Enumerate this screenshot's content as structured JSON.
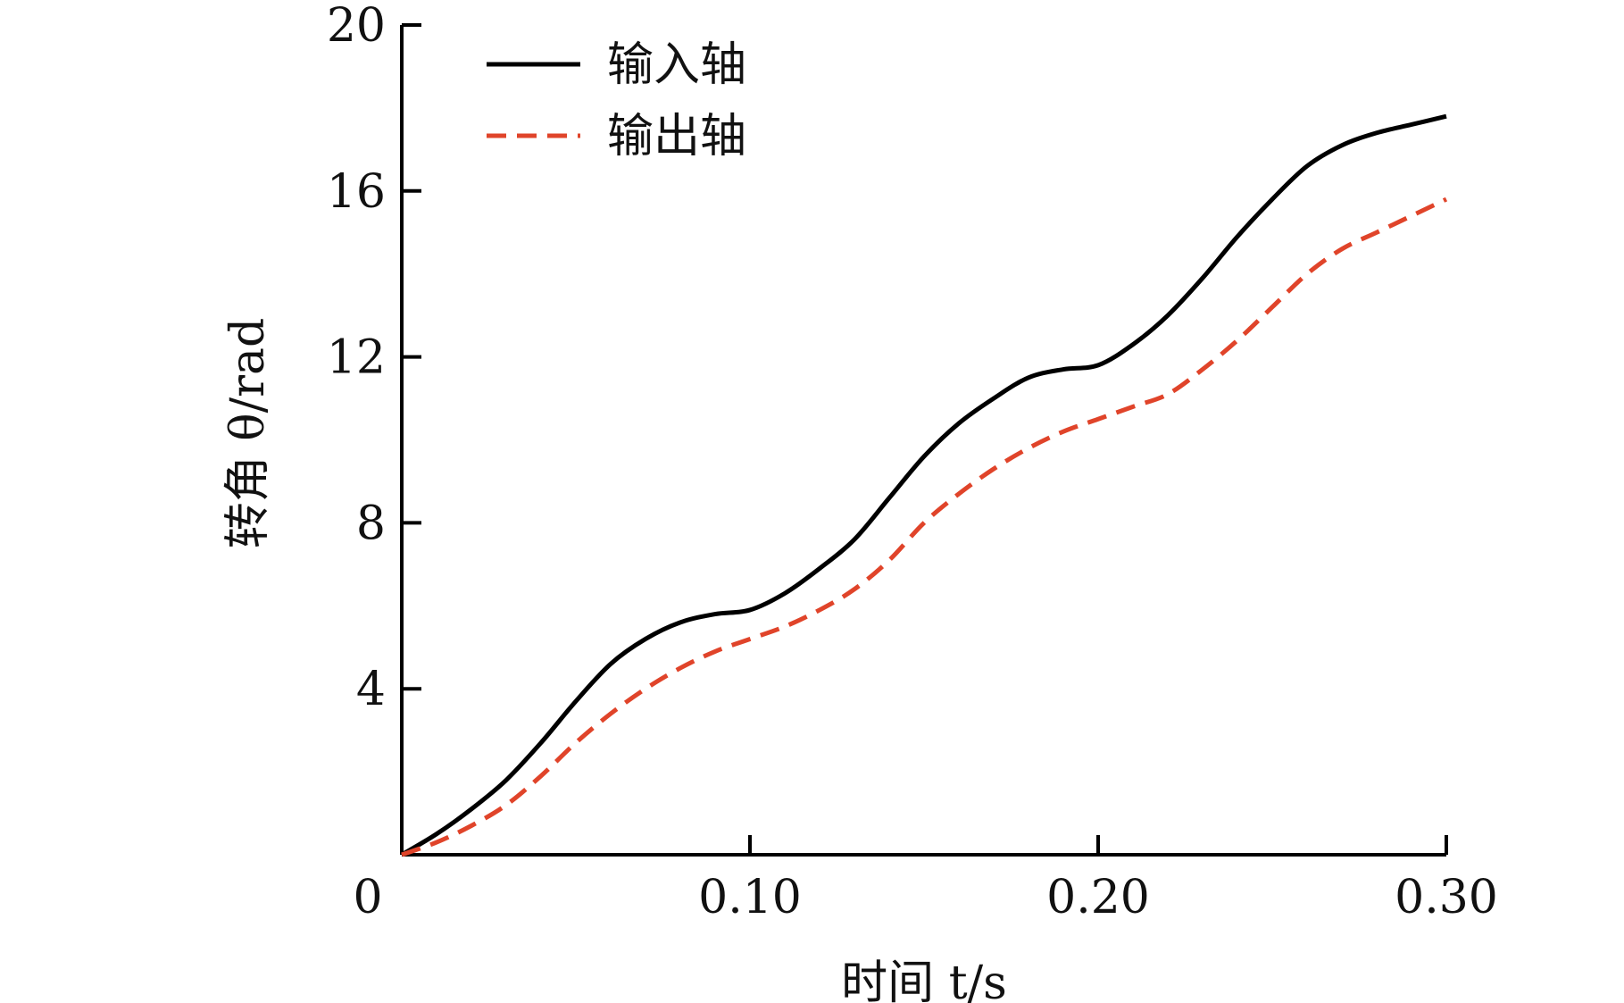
{
  "chart_data": {
    "type": "line",
    "title": "",
    "xlabel": "时间 t/s",
    "ylabel": "转角 θ/rad",
    "xlim": [
      0,
      0.3
    ],
    "ylim": [
      0,
      20
    ],
    "x_ticks": [
      "0.10",
      "0.20",
      "0.30"
    ],
    "y_ticks": [
      "4",
      "8",
      "12",
      "16",
      "20"
    ],
    "origin_label": "0",
    "grid": false,
    "legend_position": "top-left",
    "series": [
      {
        "name": "输入轴",
        "color": "#000000",
        "style": "solid",
        "x": [
          0,
          0.01,
          0.02,
          0.03,
          0.04,
          0.05,
          0.06,
          0.07,
          0.08,
          0.09,
          0.1,
          0.11,
          0.12,
          0.13,
          0.14,
          0.15,
          0.16,
          0.17,
          0.18,
          0.19,
          0.2,
          0.21,
          0.22,
          0.23,
          0.24,
          0.25,
          0.26,
          0.27,
          0.28,
          0.29,
          0.3
        ],
        "values": [
          0,
          0.5,
          1.1,
          1.8,
          2.7,
          3.7,
          4.6,
          5.2,
          5.6,
          5.8,
          5.9,
          6.3,
          6.9,
          7.6,
          8.6,
          9.6,
          10.4,
          11.0,
          11.5,
          11.7,
          11.8,
          12.3,
          13.0,
          13.9,
          14.9,
          15.8,
          16.6,
          17.1,
          17.4,
          17.6,
          17.8
        ]
      },
      {
        "name": "输出轴",
        "color": "#e0442a",
        "style": "dashed",
        "x": [
          0,
          0.01,
          0.02,
          0.03,
          0.04,
          0.05,
          0.06,
          0.07,
          0.08,
          0.09,
          0.1,
          0.11,
          0.12,
          0.13,
          0.14,
          0.15,
          0.16,
          0.17,
          0.18,
          0.19,
          0.2,
          0.21,
          0.22,
          0.23,
          0.24,
          0.25,
          0.26,
          0.27,
          0.28,
          0.29,
          0.3
        ],
        "values": [
          0,
          0.3,
          0.7,
          1.2,
          1.9,
          2.7,
          3.4,
          4.0,
          4.5,
          4.9,
          5.2,
          5.5,
          5.9,
          6.4,
          7.1,
          8.0,
          8.7,
          9.3,
          9.8,
          10.2,
          10.5,
          10.8,
          11.1,
          11.7,
          12.4,
          13.2,
          14.0,
          14.6,
          15.0,
          15.4,
          15.8
        ]
      }
    ]
  }
}
